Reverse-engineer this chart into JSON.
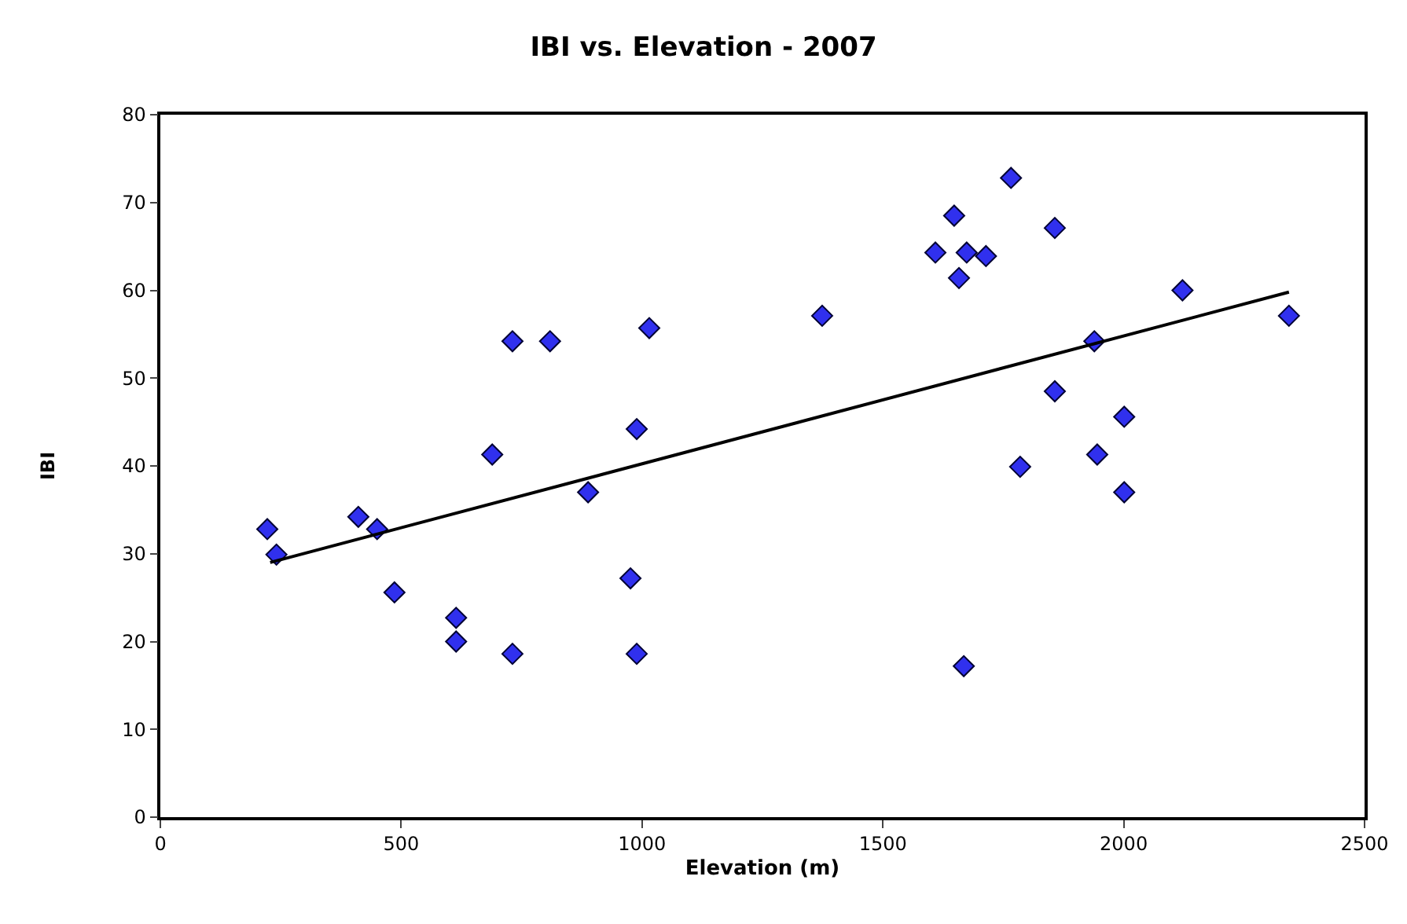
{
  "chart_data": {
    "type": "scatter",
    "title": "IBI vs. Elevation - 2007",
    "xlabel": "Elevation (m)",
    "ylabel": "IBI",
    "xlim": [
      0,
      2500
    ],
    "xticks": [
      0,
      500,
      1000,
      1500,
      2000,
      2500
    ],
    "ylim": [
      0,
      80
    ],
    "yticks": [
      0,
      10,
      20,
      30,
      40,
      50,
      60,
      70,
      80
    ],
    "series": [
      {
        "marker": "diamond",
        "color": "#3030ee",
        "x": [
          222,
          241,
          411,
          450,
          486,
          614,
          614,
          689,
          731,
          731,
          809,
          888,
          976,
          989,
          989,
          1015,
          1374,
          1609,
          1648,
          1658,
          1674,
          1714,
          1668,
          1766,
          1785,
          1857,
          1857,
          1939,
          1945,
          2001,
          2001,
          2122,
          2343
        ],
        "values": [
          32.8,
          29.9,
          34.2,
          32.8,
          25.6,
          20.0,
          22.7,
          41.3,
          54.2,
          18.6,
          54.2,
          37.0,
          27.2,
          44.2,
          18.6,
          55.7,
          57.1,
          64.3,
          68.5,
          61.4,
          64.3,
          63.9,
          17.2,
          72.8,
          39.9,
          67.1,
          48.5,
          54.2,
          41.3,
          45.6,
          37.0,
          60.0,
          57.1
        ]
      },
      {
        "type": "line",
        "marker": "none",
        "color": "#000000",
        "x": [
          228,
          2343
        ],
        "values": [
          29.0,
          59.8
        ]
      }
    ]
  }
}
